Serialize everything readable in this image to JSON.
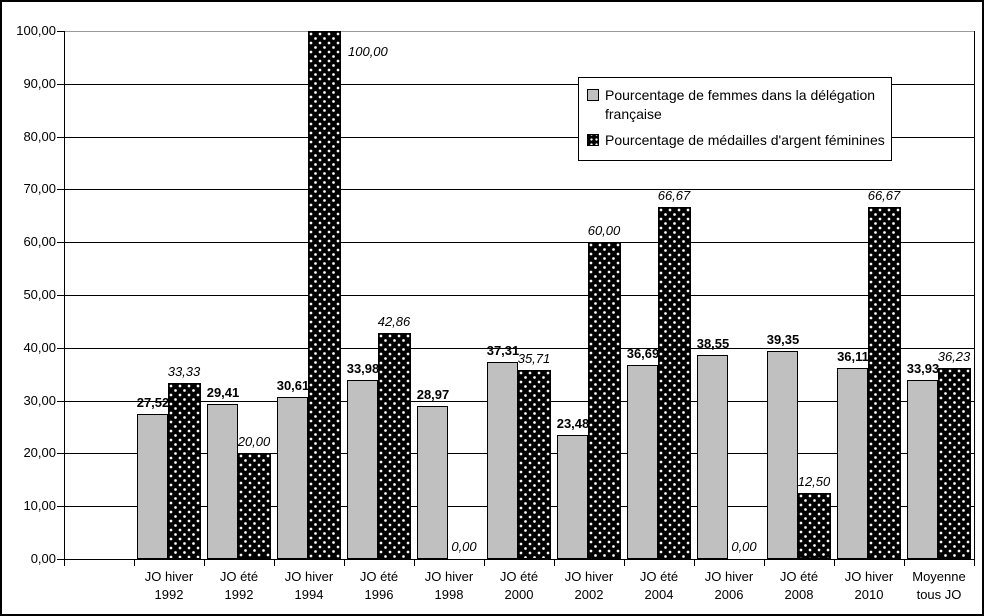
{
  "window": {
    "background_color": "#ffffff",
    "border_color": "#000000"
  },
  "chart_data": {
    "type": "bar",
    "title": "",
    "xlabel": "",
    "ylabel": "",
    "grid": true,
    "legend_position": "top-right",
    "decimal_separator": ",",
    "categories": [
      {
        "l1": "JO hiver",
        "l2": "1992"
      },
      {
        "l1": "JO été",
        "l2": "1992"
      },
      {
        "l1": "JO hiver",
        "l2": "1994"
      },
      {
        "l1": "JO été",
        "l2": "1996"
      },
      {
        "l1": "JO hiver",
        "l2": "1998"
      },
      {
        "l1": "JO été",
        "l2": "2000"
      },
      {
        "l1": "JO hiver",
        "l2": "2002"
      },
      {
        "l1": "JO été",
        "l2": "2004"
      },
      {
        "l1": "JO hiver",
        "l2": "2006"
      },
      {
        "l1": "JO été",
        "l2": "2008"
      },
      {
        "l1": "JO hiver",
        "l2": "2010"
      },
      {
        "l1": "Moyenne",
        "l2": "tous JO"
      }
    ],
    "series": [
      {
        "name": "Pourcentage de femmes dans la délégation française",
        "color": "#c0c0c0",
        "pattern": "solid",
        "label_style": "bold",
        "values": [
          27.52,
          29.41,
          30.61,
          33.98,
          28.97,
          37.31,
          23.48,
          36.69,
          38.55,
          39.35,
          36.11,
          33.93
        ],
        "labels": [
          "27,52",
          "29,41",
          "30,61",
          "33,98",
          "28,97",
          "37,31",
          "23,48",
          "36,69",
          "38,55",
          "39,35",
          "36,11",
          "33,93"
        ]
      },
      {
        "name": "Pourcentage de médailles d'argent féminines",
        "color": "#000000",
        "pattern": "dotted",
        "label_style": "italic",
        "values": [
          33.33,
          20.0,
          100.0,
          42.86,
          0.0,
          35.71,
          60.0,
          66.67,
          0.0,
          12.5,
          66.67,
          36.23
        ],
        "labels": [
          "33,33",
          "20,00",
          "100,00",
          "42,86",
          "0,00",
          "35,71",
          "60,00",
          "66,67",
          "0,00",
          "12,50",
          "66,67",
          "36,23"
        ]
      }
    ],
    "y_axis": {
      "min": 0,
      "max": 100,
      "step": 10,
      "tick_labels": [
        "0,00",
        "10,00",
        "20,00",
        "30,00",
        "40,00",
        "50,00",
        "60,00",
        "70,00",
        "80,00",
        "90,00",
        "100,00"
      ]
    }
  }
}
